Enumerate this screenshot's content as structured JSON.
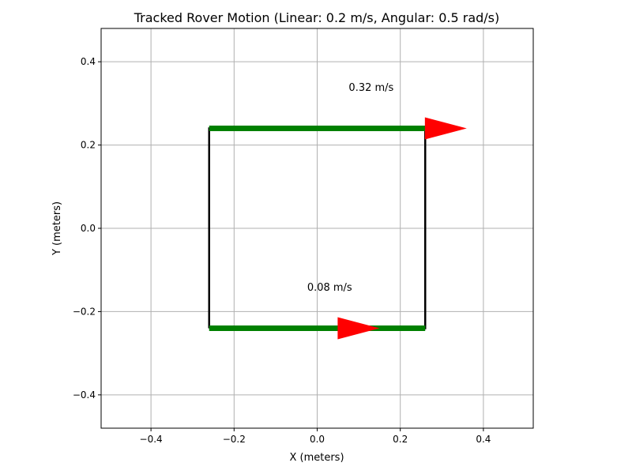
{
  "chart_data": {
    "type": "line",
    "title": "Tracked Rover Motion (Linear: 0.2 m/s, Angular: 0.5 rad/s)",
    "xlabel": "X (meters)",
    "ylabel": "Y (meters)",
    "xlim": [
      -0.52,
      0.52
    ],
    "ylim": [
      -0.48,
      0.48
    ],
    "xticks": [
      -0.4,
      -0.2,
      0.0,
      0.2,
      0.4
    ],
    "yticks": [
      -0.4,
      -0.2,
      0.0,
      0.2,
      0.4
    ],
    "xtick_labels": [
      "−0.4",
      "−0.2",
      "0.0",
      "0.2",
      "0.4"
    ],
    "ytick_labels": [
      "−0.4",
      "−0.2",
      "0.0",
      "0.2",
      "0.4"
    ],
    "grid": true,
    "body_outline": {
      "color": "#000000",
      "x": [
        -0.26,
        0.26,
        0.26,
        -0.26,
        -0.26
      ],
      "y": [
        -0.24,
        -0.24,
        0.24,
        0.24,
        -0.24
      ]
    },
    "tracks": [
      {
        "color": "#008000",
        "x": [
          -0.26,
          0.26
        ],
        "y": [
          0.24,
          0.24
        ]
      },
      {
        "color": "#008000",
        "x": [
          -0.26,
          0.26
        ],
        "y": [
          -0.24,
          -0.24
        ]
      }
    ],
    "velocity_arrows": [
      {
        "color": "#ff0000",
        "x": 0.26,
        "y": 0.24,
        "dx": 0.1,
        "dy": 0.0
      },
      {
        "color": "#ff0000",
        "x": 0.06,
        "y": -0.24,
        "dx": 0.09,
        "dy": 0.0
      }
    ],
    "annotations": [
      {
        "text": "0.32 m/s",
        "x": 0.13,
        "y": 0.34
      },
      {
        "text": "0.08 m/s",
        "x": 0.03,
        "y": -0.14
      }
    ]
  }
}
